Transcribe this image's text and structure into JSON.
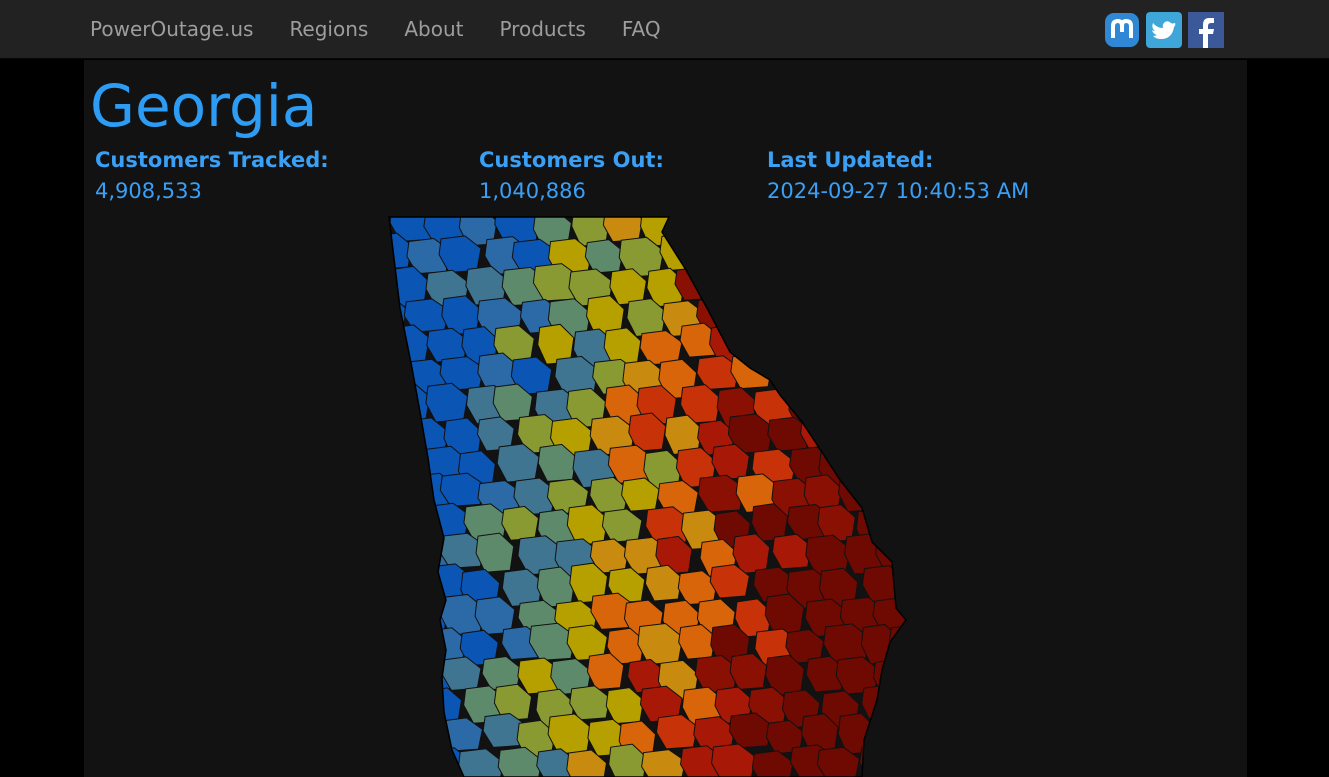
{
  "navbar": {
    "brand": "PowerOutage.us",
    "links": [
      "Regions",
      "About",
      "Products",
      "FAQ"
    ],
    "social": [
      {
        "name": "mastodon-icon",
        "color": "#3088d4"
      },
      {
        "name": "twitter-icon",
        "color": "#3ea6d9"
      },
      {
        "name": "facebook-icon",
        "color": "#3b5998"
      }
    ]
  },
  "page": {
    "title": "Georgia",
    "stats": {
      "tracked_label": "Customers Tracked:",
      "tracked_value": "4,908,533",
      "out_label": "Customers Out:",
      "out_value": "1,040,886",
      "updated_label": "Last Updated:",
      "updated_value": "2024-09-27 10:40:53 AM"
    }
  },
  "colors": {
    "accent": "#2d9cf5",
    "outage_scale": [
      "#0b55b5",
      "#2b6aa6",
      "#3f7590",
      "#5e8a6c",
      "#8a9a32",
      "#b5a000",
      "#c98a10",
      "#d8650a",
      "#c73208",
      "#a81806",
      "#8a1004",
      "#6e0a02"
    ]
  }
}
